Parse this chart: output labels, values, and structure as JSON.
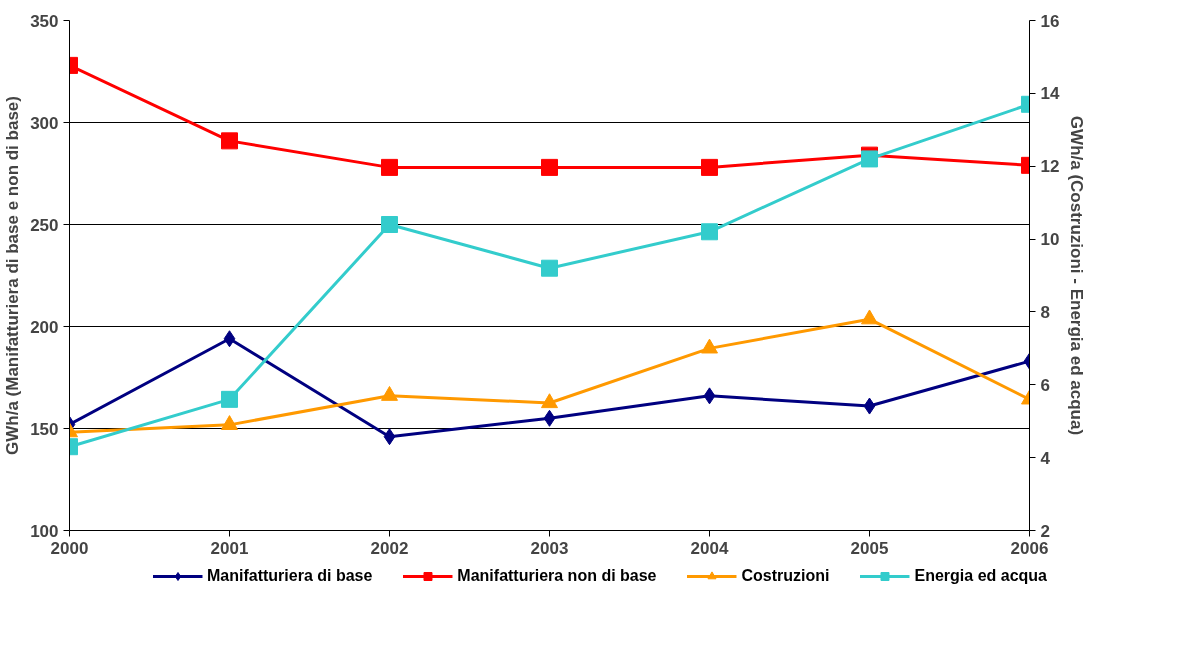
{
  "chart_data": {
    "type": "line",
    "x": [
      2000,
      2001,
      2002,
      2003,
      2004,
      2005,
      2006
    ],
    "xlim": [
      2000,
      2006
    ],
    "xticks": [
      2000,
      2001,
      2002,
      2003,
      2004,
      2005,
      2006
    ],
    "ylim": [
      100,
      350
    ],
    "yticks": [
      100,
      150,
      200,
      250,
      300,
      350
    ],
    "y2lim": [
      2,
      16
    ],
    "y2ticks": [
      2,
      4,
      6,
      8,
      10,
      12,
      14,
      16
    ],
    "ylabel": "GWh/a (Manifatturiera di base e non di base)",
    "y2label": "GWh/a (Costruzioni - Energia ed acqua)",
    "grid": "y",
    "legend": "bottom",
    "series": [
      {
        "name": "Manifatturiera di base",
        "color": "#000080",
        "marker": "diamond",
        "values": [
          152,
          194,
          146,
          155,
          166,
          161,
          183
        ]
      },
      {
        "name": "Manifatturiera non di base",
        "color": "#ff0000",
        "marker": "square",
        "values": [
          328,
          291,
          278,
          278,
          278,
          284,
          279
        ]
      },
      {
        "name": "Costruzioni",
        "color": "#ff9900",
        "marker": "triangle",
        "axis": "y2",
        "values": [
          4.7,
          4.9,
          5.7,
          5.5,
          7.0,
          7.8,
          5.6
        ]
      },
      {
        "name": "Energia ed acqua",
        "color": "#33cccc",
        "marker": "square",
        "axis": "y2",
        "values": [
          4.3,
          5.6,
          10.4,
          9.2,
          10.2,
          12.2,
          13.7
        ]
      }
    ]
  }
}
